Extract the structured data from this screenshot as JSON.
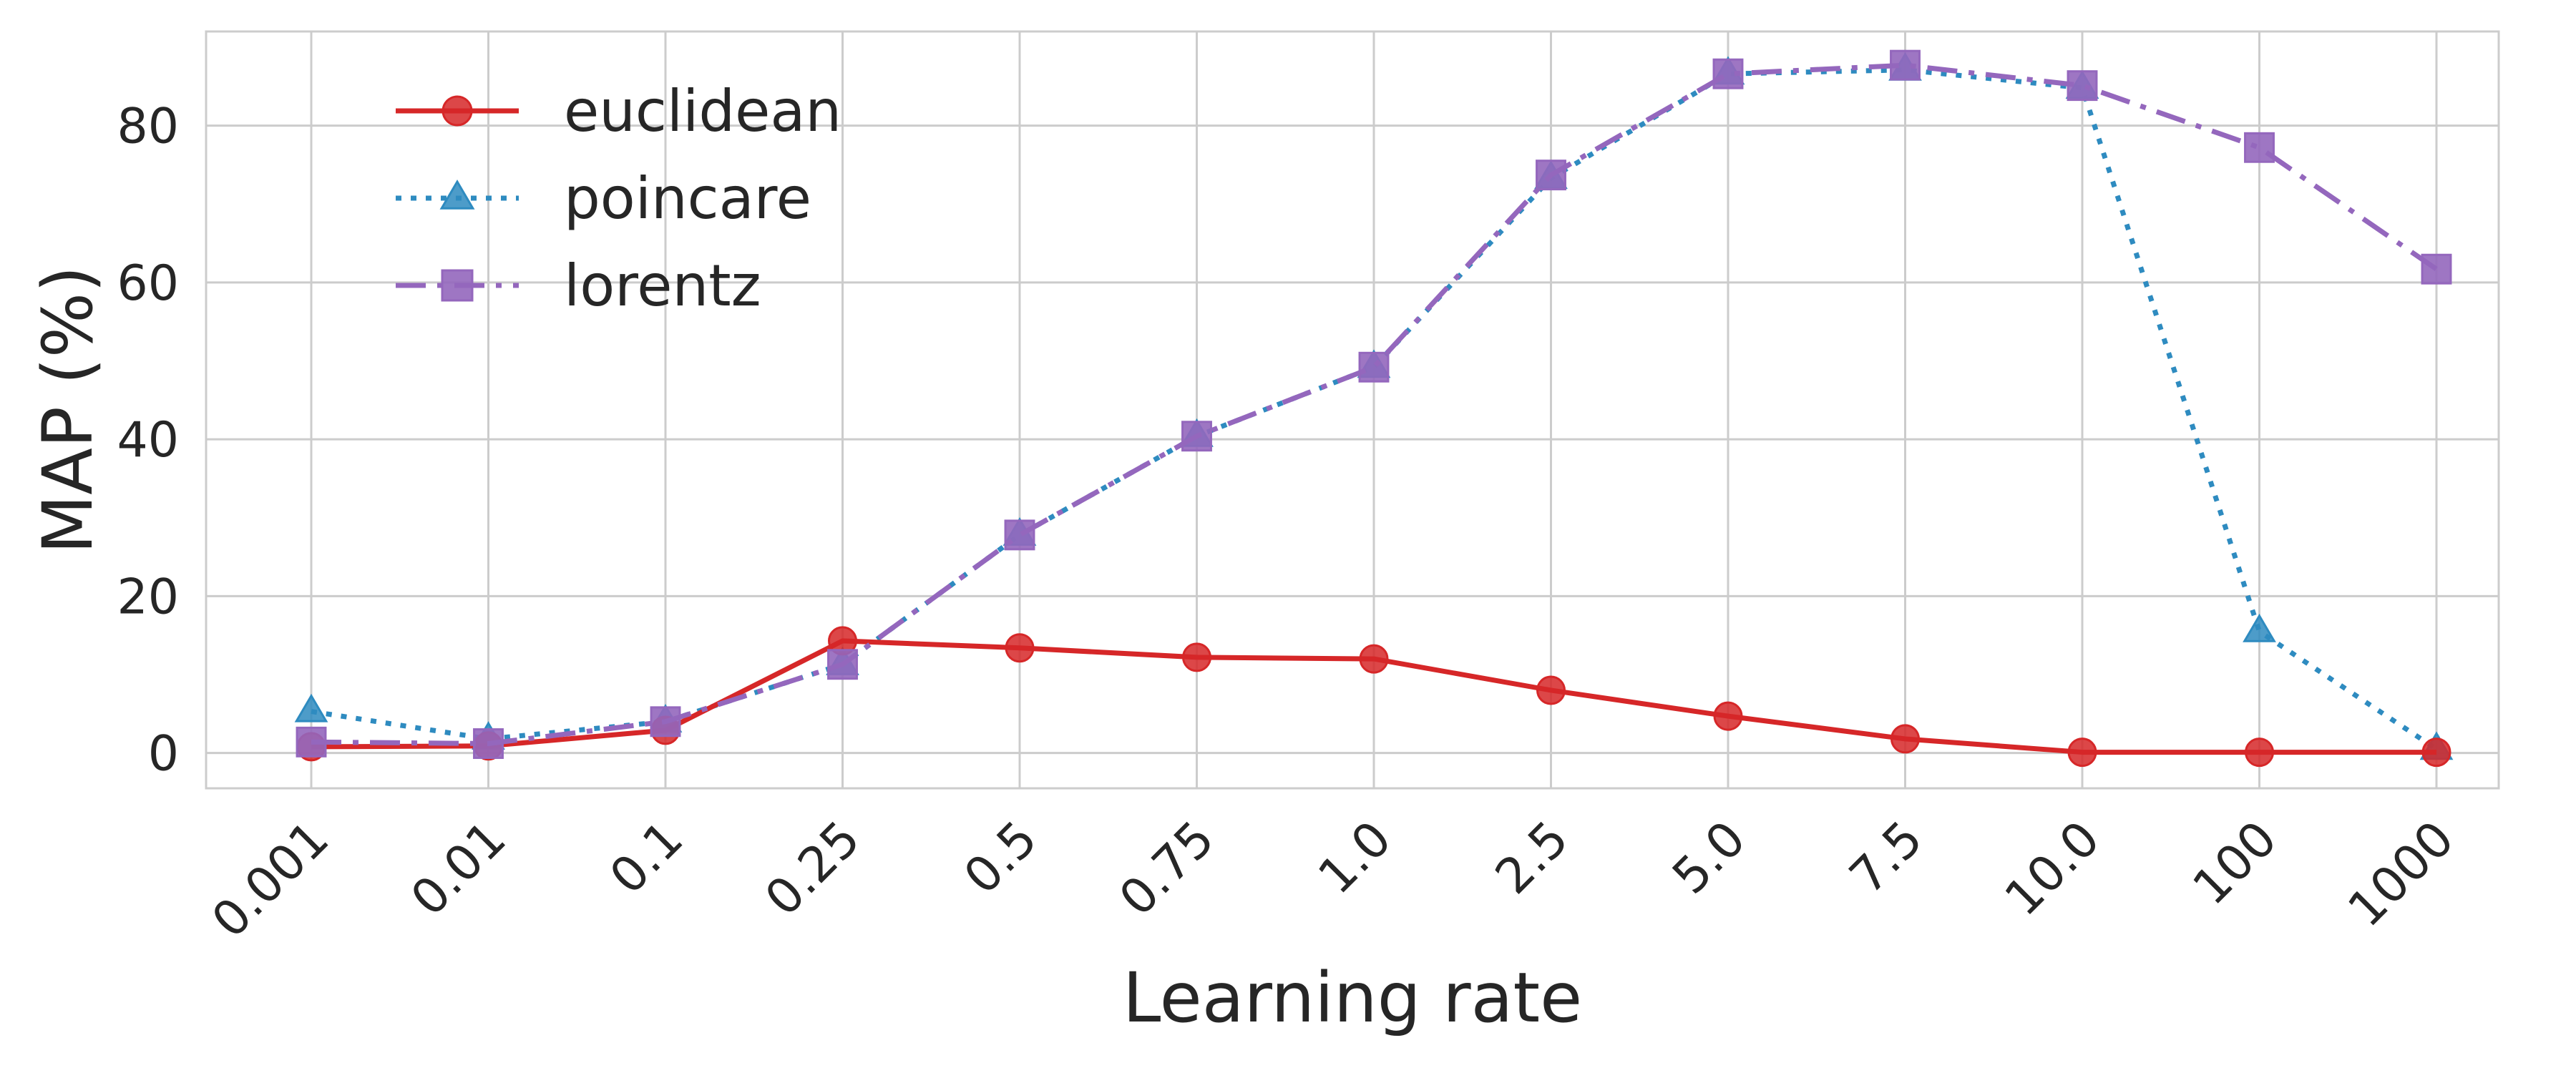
{
  "chart_data": {
    "type": "line",
    "title": "",
    "xlabel": "Learning rate",
    "ylabel": "MAP (%)",
    "categories": [
      "0.001",
      "0.01",
      "0.1",
      "0.25",
      "0.5",
      "0.75",
      "1.0",
      "2.5",
      "5.0",
      "7.5",
      "10.0",
      "100",
      "1000"
    ],
    "yticks": [
      0,
      20,
      40,
      60,
      80
    ],
    "ylim": [
      -4.5,
      92
    ],
    "grid": true,
    "legend": "top-left",
    "series": [
      {
        "name": "euclidean",
        "color": "#d62728",
        "marker": "circle",
        "linestyle": "solid",
        "values": [
          0.8,
          0.9,
          2.9,
          14.3,
          13.4,
          12.2,
          12.0,
          8.0,
          4.7,
          1.8,
          0.1,
          0.1,
          0.1
        ]
      },
      {
        "name": "poincare",
        "color": "#2e8bc0",
        "marker": "triangle",
        "linestyle": "dotted",
        "values": [
          5.3,
          1.8,
          4.0,
          11.3,
          27.8,
          40.4,
          49.2,
          73.3,
          86.6,
          87.1,
          84.8,
          15.5,
          0.5
        ]
      },
      {
        "name": "lorentz",
        "color": "#9467bd",
        "marker": "square",
        "linestyle": "dashdot",
        "values": [
          1.4,
          1.2,
          4.0,
          11.3,
          27.8,
          40.4,
          49.2,
          73.7,
          86.6,
          87.7,
          85.1,
          77.2,
          61.7
        ]
      }
    ]
  }
}
